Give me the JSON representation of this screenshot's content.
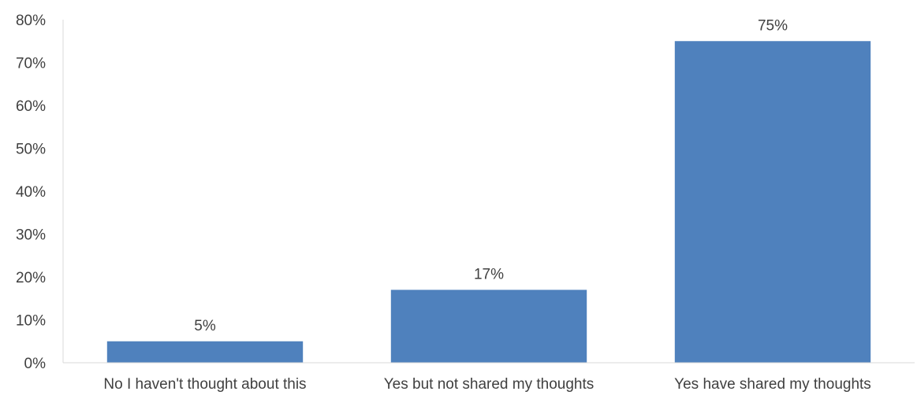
{
  "chart_data": {
    "type": "bar",
    "categories": [
      "No I haven't thought about this",
      "Yes but not shared my thoughts",
      "Yes have shared my thoughts"
    ],
    "values": [
      5,
      17,
      75
    ],
    "data_labels": [
      "5%",
      "17%",
      "75%"
    ],
    "ylim": [
      0,
      80
    ],
    "yticks": [
      0,
      10,
      20,
      30,
      40,
      50,
      60,
      70,
      80
    ],
    "ytick_labels": [
      "0%",
      "10%",
      "20%",
      "30%",
      "40%",
      "50%",
      "60%",
      "70%",
      "80%"
    ],
    "bar_color": "#4f81bd",
    "grid": false,
    "legend": "none"
  }
}
